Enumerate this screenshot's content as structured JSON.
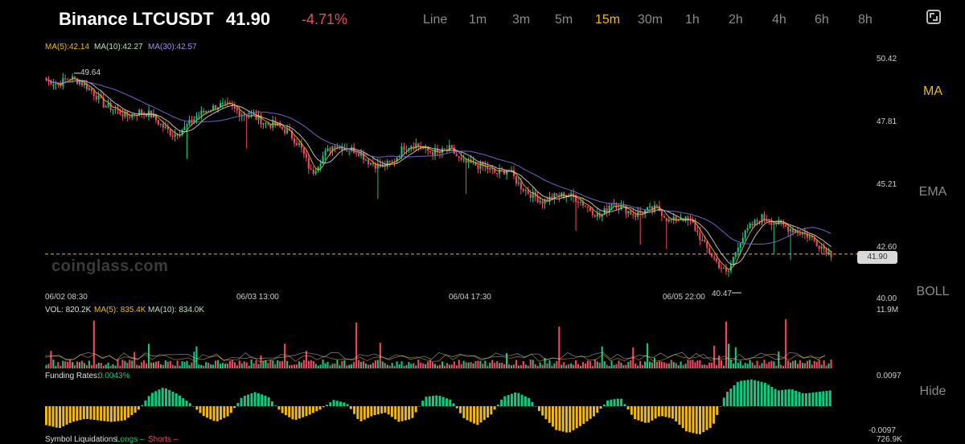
{
  "header": {
    "title": "Binance LTCUSDT",
    "price": "41.90",
    "change": "-4.71%",
    "timeframes": [
      "Line",
      "1m",
      "3m",
      "5m",
      "15m",
      "30m",
      "1h",
      "2h",
      "4h",
      "6h",
      "8h"
    ],
    "active_timeframe": "15m"
  },
  "sidebar": {
    "items": [
      "MA",
      "EMA",
      "BOLL",
      "Hide"
    ],
    "active": "MA"
  },
  "legend": {
    "ma5": "MA(5):42.14",
    "ma10": "MA(10):42.27",
    "ma30": "MA(30):42.57"
  },
  "watermark": "coinglass.com",
  "price_tag": "41.90",
  "annotations": {
    "high": "49.64",
    "low": "40.47"
  },
  "volume": {
    "label": "VOL: 820.2K",
    "ma5": "MA(5): 835.4K",
    "ma10": "MA(10): 834.0K",
    "ymax": "11.9M"
  },
  "funding": {
    "label": "Funding Rates:",
    "value": "0.0043%",
    "ymax": "0.0097",
    "ymin": "-0.0097"
  },
  "liquidations": {
    "label": "Symbol Liquidations",
    "longs": "Longs –",
    "shorts": "Shorts –",
    "ymax": "726.9K"
  },
  "colors": {
    "up": "#0ecb81",
    "down": "#f6465d",
    "ma5": "#f0b90b",
    "ma10": "#d0d0d0",
    "ma30": "#7b6fd6",
    "funding_pos": "#0ecb81",
    "funding_neg": "#f0b90b"
  },
  "chart_data": {
    "type": "candlestick",
    "ylim": [
      40.0,
      50.42
    ],
    "yticks": [
      "50.42",
      "47.81",
      "45.21",
      "42.60",
      "40.00"
    ],
    "xticks": [
      "06/02 08:30",
      "06/03 13:00",
      "06/04 17:30",
      "06/05 22:00"
    ],
    "close_path": [
      49.5,
      49.3,
      49.6,
      49.4,
      49.0,
      48.4,
      48.2,
      47.9,
      48.1,
      48.0,
      47.5,
      47.1,
      47.4,
      47.9,
      48.2,
      48.4,
      48.3,
      48.0,
      47.9,
      47.6,
      47.5,
      47.2,
      46.6,
      45.4,
      46.2,
      46.7,
      46.5,
      46.4,
      45.9,
      45.7,
      45.9,
      46.6,
      46.7,
      46.4,
      46.3,
      46.5,
      45.9,
      45.8,
      45.7,
      45.4,
      45.6,
      44.9,
      44.5,
      44.2,
      44.4,
      44.5,
      44.3,
      43.9,
      43.5,
      44.2,
      43.9,
      43.6,
      43.8,
      43.9,
      43.3,
      43.5,
      43.2,
      42.3,
      41.6,
      41.0,
      42.4,
      43.1,
      43.5,
      43.3,
      43.1,
      42.9,
      42.7,
      42.3,
      41.9
    ],
    "funding_path": [
      -0.006,
      -0.007,
      -0.005,
      -0.004,
      -0.0045,
      -0.005,
      -0.0045,
      -0.0015,
      0.004,
      0.006,
      0.004,
      0.001,
      -0.003,
      -0.005,
      -0.003,
      0.003,
      0.0045,
      0.003,
      -0.002,
      -0.0045,
      -0.003,
      -0.001,
      0.002,
      0.001,
      -0.005,
      -0.003,
      -0.002,
      -0.005,
      -0.004,
      0.003,
      0.0035,
      0.002,
      -0.004,
      -0.006,
      -0.003,
      0.003,
      0.0045,
      0.0025,
      -0.003,
      -0.0075,
      -0.0085,
      -0.006,
      -0.003,
      0.002,
      0.0025,
      -0.004,
      -0.0055,
      -0.003,
      -0.004,
      -0.008,
      -0.009,
      -0.0065,
      0.004,
      0.008,
      0.0085,
      0.0075,
      0.005,
      0.0055,
      0.004,
      0.0045,
      0.005
    ]
  }
}
